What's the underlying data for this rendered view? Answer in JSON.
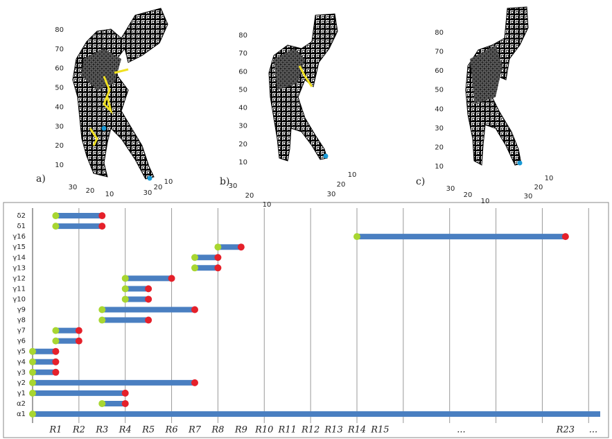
{
  "panels": [
    {
      "label": "a)",
      "yticks": [
        10,
        20,
        30,
        40,
        50,
        60,
        70,
        80
      ],
      "left_ticks": [
        30,
        20,
        10
      ],
      "right_ticks": [
        30,
        20,
        10
      ]
    },
    {
      "label": "b)",
      "yticks": [
        10,
        20,
        30,
        40,
        50,
        60,
        70,
        80
      ],
      "left_ticks": [
        30,
        20,
        10
      ],
      "right_ticks": [
        30,
        20,
        10
      ]
    },
    {
      "label": "c)",
      "yticks": [
        10,
        20,
        30,
        40,
        50,
        60,
        70,
        80
      ],
      "left_ticks": [
        30,
        20,
        10
      ],
      "right_ticks": [
        30,
        20,
        10
      ]
    }
  ],
  "barcode": {
    "xlim": [
      0,
      24.5
    ],
    "grid": [
      2,
      4,
      6,
      8,
      10,
      12,
      14,
      16,
      18,
      20,
      22,
      24
    ],
    "xticks": [
      {
        "value": 1,
        "label": "R1"
      },
      {
        "value": 2,
        "label": "R2"
      },
      {
        "value": 3,
        "label": "R3"
      },
      {
        "value": 4,
        "label": "R4"
      },
      {
        "value": 5,
        "label": "R5"
      },
      {
        "value": 6,
        "label": "R6"
      },
      {
        "value": 7,
        "label": "R7"
      },
      {
        "value": 8,
        "label": "R8"
      },
      {
        "value": 9,
        "label": "R9"
      },
      {
        "value": 10,
        "label": "R10"
      },
      {
        "value": 11,
        "label": "R11"
      },
      {
        "value": 12,
        "label": "R12"
      },
      {
        "value": 13,
        "label": "R13"
      },
      {
        "value": 14,
        "label": "R14"
      },
      {
        "value": 15,
        "label": "R15"
      },
      {
        "value": 18.5,
        "label": "..."
      },
      {
        "value": 23,
        "label": "R23"
      },
      {
        "value": 24.2,
        "label": "..."
      }
    ],
    "bars": [
      {
        "name": "α1",
        "start": 0,
        "end": 24.5
      },
      {
        "name": "α2",
        "start": 3,
        "end": 4
      },
      {
        "name": "γ1",
        "start": 0,
        "end": 4
      },
      {
        "name": "γ2",
        "start": 0,
        "end": 7
      },
      {
        "name": "γ3",
        "start": 0,
        "end": 1
      },
      {
        "name": "γ4",
        "start": 0,
        "end": 1
      },
      {
        "name": "γ5",
        "start": 0,
        "end": 1
      },
      {
        "name": "γ6",
        "start": 1,
        "end": 2
      },
      {
        "name": "γ7",
        "start": 1,
        "end": 2
      },
      {
        "name": "γ8",
        "start": 3,
        "end": 5
      },
      {
        "name": "γ9",
        "start": 3,
        "end": 7
      },
      {
        "name": "γ10",
        "start": 4,
        "end": 5
      },
      {
        "name": "γ11",
        "start": 4,
        "end": 5
      },
      {
        "name": "γ12",
        "start": 4,
        "end": 6
      },
      {
        "name": "γ13",
        "start": 7,
        "end": 8
      },
      {
        "name": "γ14",
        "start": 7,
        "end": 8
      },
      {
        "name": "γ15",
        "start": 8,
        "end": 9
      },
      {
        "name": "γ16",
        "start": 14,
        "end": 23
      },
      {
        "name": "δ1",
        "start": 1,
        "end": 3
      },
      {
        "name": "δ2",
        "start": 1,
        "end": 3
      }
    ]
  }
}
